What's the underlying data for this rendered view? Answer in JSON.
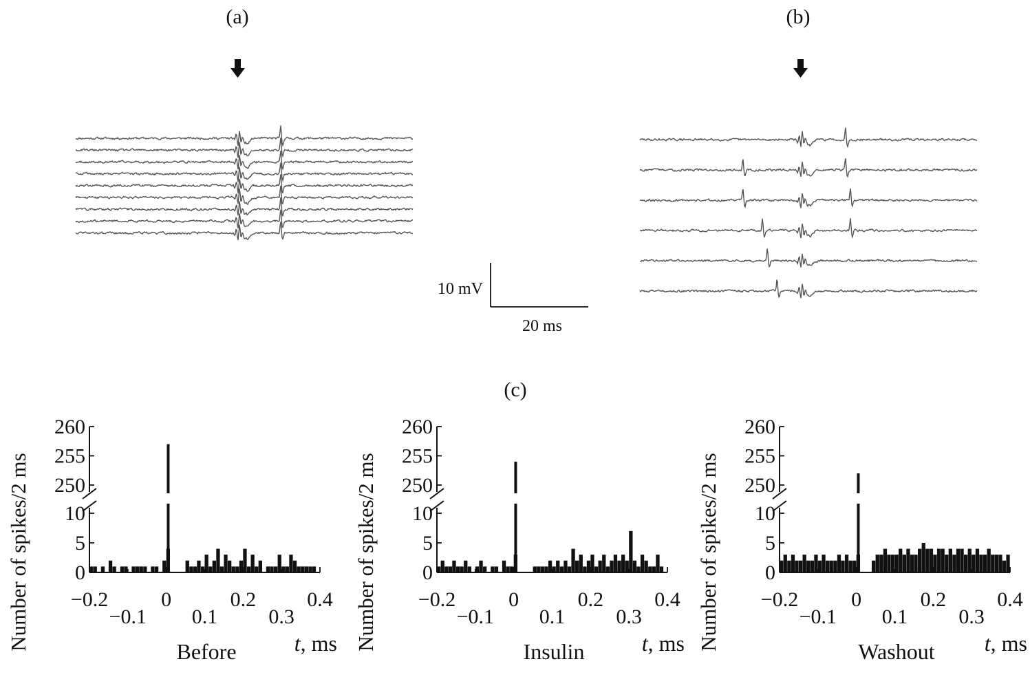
{
  "panels": {
    "a": "(a)",
    "b": "(b)",
    "c": "(c)"
  },
  "scale_bar": {
    "voltage": "10 mV",
    "time": "20 ms"
  },
  "colors": {
    "trace": "#555555",
    "bars": "#111111"
  },
  "icons": [
    "stimulus-arrow-icon",
    "stimulus-arrow-icon"
  ],
  "traces": {
    "a": {
      "sweep_count": 9,
      "late_spike_sweeps": [
        0,
        1,
        2,
        3,
        4,
        5,
        6,
        7,
        8
      ],
      "late_spike_latency_ms": 9
    },
    "b": {
      "sweep_count": 6,
      "early_spike_latencies_ms": [
        null,
        -12,
        -12,
        -8,
        -7,
        -5
      ],
      "late_spike_latencies_ms": [
        9,
        9,
        10,
        10,
        null,
        null
      ]
    }
  },
  "chart_data": [
    {
      "type": "bar",
      "title": "Before",
      "ylabel": "Number of spikes/2 ms",
      "xlabel_var": "t",
      "xlabel_unit": ", ms",
      "xlim": [
        -0.2,
        0.4
      ],
      "xticks_major": [
        "−0.2",
        "0",
        "0.2",
        "0.4"
      ],
      "xticks_minor": [
        "−0.1",
        "0.1",
        "0.3"
      ],
      "yticks_lower": [
        "0",
        "5",
        "10"
      ],
      "yticks_upper": [
        "250",
        "255",
        "260"
      ],
      "ylim_lower": [
        0,
        11
      ],
      "ylim_upper": [
        248,
        260
      ],
      "axis_break": true,
      "peak": {
        "x": 0.005,
        "value": 257
      },
      "x": [
        -0.2,
        -0.19,
        -0.18,
        -0.17,
        -0.16,
        -0.15,
        -0.14,
        -0.13,
        -0.12,
        -0.11,
        -0.1,
        -0.09,
        -0.08,
        -0.07,
        -0.06,
        -0.05,
        -0.04,
        -0.03,
        -0.02,
        -0.01,
        0.0,
        0.05,
        0.06,
        0.07,
        0.08,
        0.09,
        0.1,
        0.11,
        0.12,
        0.13,
        0.14,
        0.15,
        0.16,
        0.17,
        0.18,
        0.19,
        0.2,
        0.21,
        0.22,
        0.23,
        0.24,
        0.25,
        0.26,
        0.27,
        0.28,
        0.29,
        0.3,
        0.31,
        0.32,
        0.33,
        0.34,
        0.35,
        0.36,
        0.37,
        0.38
      ],
      "values": [
        1,
        1,
        0,
        1,
        0,
        2,
        1,
        0,
        1,
        1,
        0,
        1,
        1,
        1,
        1,
        0,
        1,
        1,
        0,
        2,
        4,
        2,
        1,
        1,
        2,
        1,
        3,
        1,
        2,
        4,
        1,
        3,
        2,
        1,
        1,
        2,
        4,
        1,
        3,
        1,
        2,
        0,
        1,
        1,
        1,
        3,
        1,
        1,
        3,
        2,
        1,
        1,
        1,
        1,
        1
      ]
    },
    {
      "type": "bar",
      "title": "Insulin",
      "ylabel": "Number of spikes/2 ms",
      "xlabel_var": "t",
      "xlabel_unit": ", ms",
      "xlim": [
        -0.2,
        0.4
      ],
      "xticks_major": [
        "−0.2",
        "0",
        "0.2",
        "0.4"
      ],
      "xticks_minor": [
        "−0.1",
        "0.1",
        "0.3"
      ],
      "yticks_lower": [
        "0",
        "5",
        "10"
      ],
      "yticks_upper": [
        "250",
        "255",
        "260"
      ],
      "ylim_lower": [
        0,
        11
      ],
      "ylim_upper": [
        248,
        260
      ],
      "axis_break": true,
      "peak": {
        "x": 0.005,
        "value": 254
      },
      "x": [
        -0.2,
        -0.19,
        -0.18,
        -0.17,
        -0.16,
        -0.15,
        -0.14,
        -0.13,
        -0.12,
        -0.11,
        -0.1,
        -0.09,
        -0.08,
        -0.07,
        -0.06,
        -0.05,
        -0.04,
        -0.03,
        -0.02,
        -0.01,
        0.0,
        0.05,
        0.06,
        0.07,
        0.08,
        0.09,
        0.1,
        0.11,
        0.12,
        0.13,
        0.14,
        0.15,
        0.16,
        0.17,
        0.18,
        0.19,
        0.2,
        0.21,
        0.22,
        0.23,
        0.24,
        0.25,
        0.26,
        0.27,
        0.28,
        0.29,
        0.3,
        0.31,
        0.32,
        0.33,
        0.34,
        0.35,
        0.36,
        0.37,
        0.38
      ],
      "values": [
        1,
        2,
        1,
        1,
        2,
        1,
        1,
        2,
        1,
        0,
        1,
        2,
        1,
        0,
        1,
        1,
        0,
        2,
        1,
        1,
        3,
        1,
        1,
        1,
        1,
        2,
        1,
        2,
        1,
        2,
        1,
        4,
        2,
        3,
        1,
        2,
        3,
        1,
        2,
        3,
        1,
        2,
        3,
        2,
        3,
        2,
        7,
        2,
        1,
        3,
        2,
        1,
        1,
        3,
        1
      ]
    },
    {
      "type": "bar",
      "title": "Washout",
      "ylabel": "Number of spikes/2 ms",
      "xlabel_var": "t",
      "xlabel_unit": ", ms",
      "xlim": [
        -0.2,
        0.4
      ],
      "xticks_major": [
        "−0.2",
        "0",
        "0.2",
        "0.4"
      ],
      "xticks_minor": [
        "−0.1",
        "0.1",
        "0.3"
      ],
      "yticks_lower": [
        "0",
        "5",
        "10"
      ],
      "yticks_upper": [
        "250",
        "255",
        "260"
      ],
      "ylim_lower": [
        0,
        11
      ],
      "ylim_upper": [
        248,
        260
      ],
      "axis_break": true,
      "peak": {
        "x": 0.005,
        "value": 252
      },
      "x": [
        -0.2,
        -0.19,
        -0.18,
        -0.17,
        -0.16,
        -0.15,
        -0.14,
        -0.13,
        -0.12,
        -0.11,
        -0.1,
        -0.09,
        -0.08,
        -0.07,
        -0.06,
        -0.05,
        -0.04,
        -0.03,
        -0.02,
        -0.01,
        0.0,
        0.04,
        0.05,
        0.06,
        0.07,
        0.08,
        0.09,
        0.1,
        0.11,
        0.12,
        0.13,
        0.14,
        0.15,
        0.16,
        0.17,
        0.18,
        0.19,
        0.2,
        0.21,
        0.22,
        0.23,
        0.24,
        0.25,
        0.26,
        0.27,
        0.28,
        0.29,
        0.3,
        0.31,
        0.32,
        0.33,
        0.34,
        0.35,
        0.36,
        0.37,
        0.38,
        0.39
      ],
      "values": [
        2,
        3,
        2,
        3,
        2,
        2,
        3,
        2,
        2,
        3,
        2,
        3,
        2,
        2,
        2,
        3,
        2,
        3,
        2,
        2,
        3,
        2,
        3,
        3,
        4,
        3,
        3,
        3,
        4,
        3,
        4,
        3,
        3,
        4,
        5,
        4,
        4,
        3,
        4,
        4,
        3,
        4,
        3,
        4,
        4,
        3,
        4,
        3,
        4,
        3,
        3,
        4,
        3,
        3,
        3,
        2,
        3
      ]
    }
  ]
}
